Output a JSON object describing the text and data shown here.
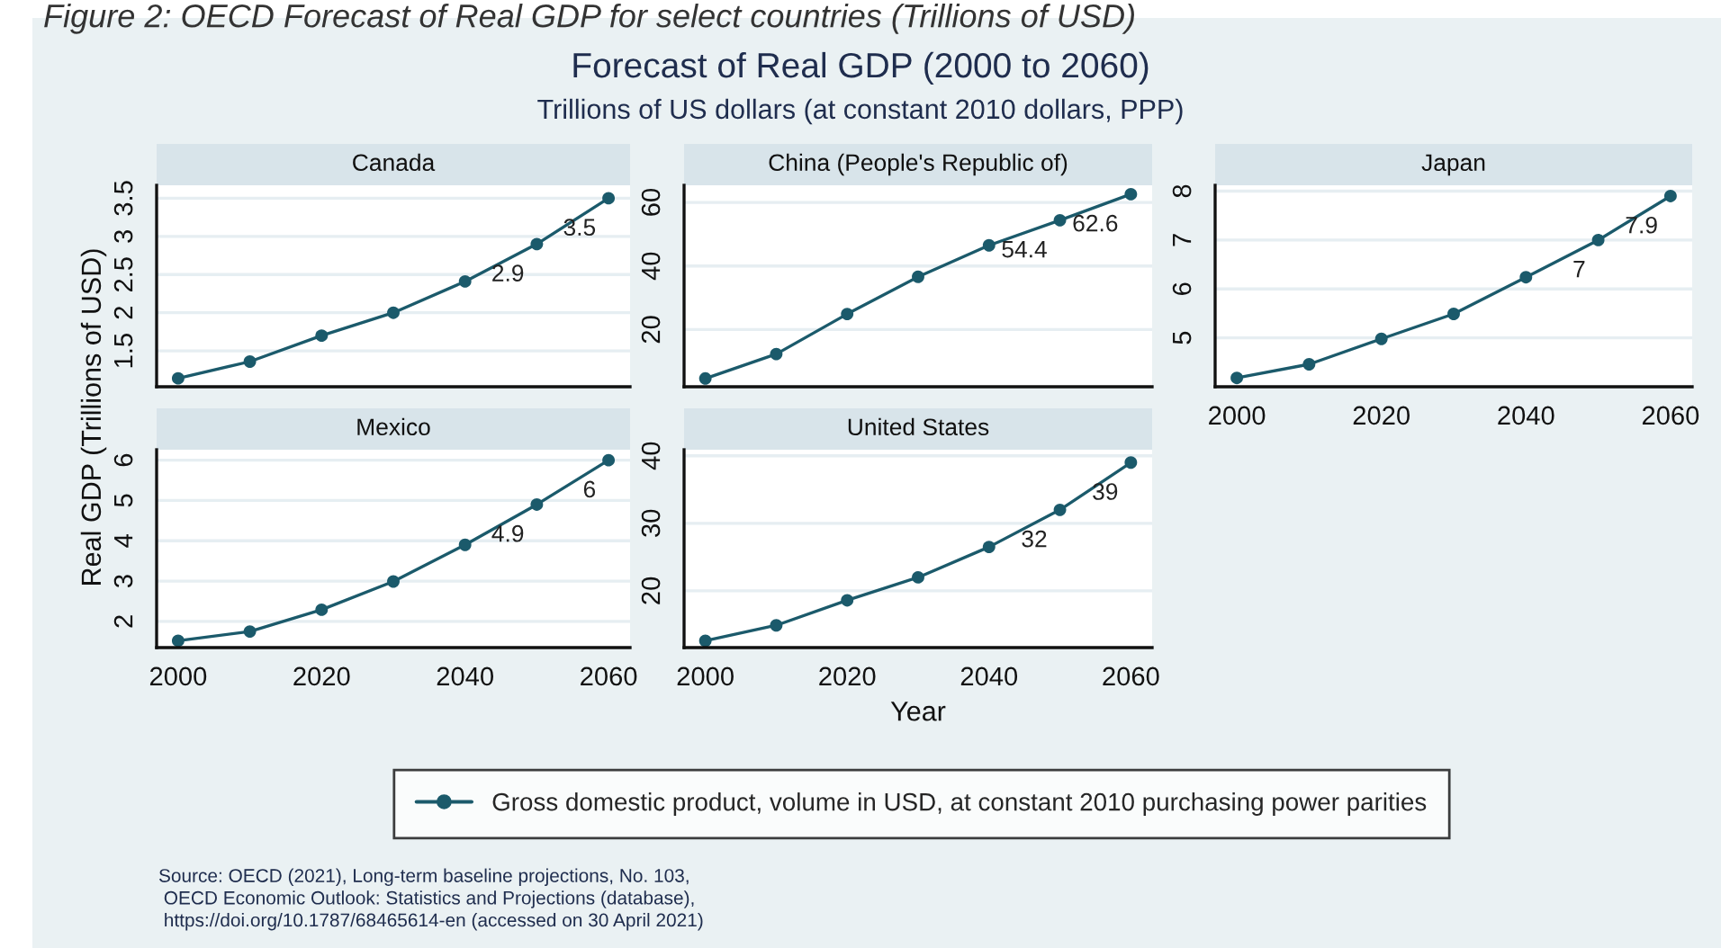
{
  "chart_data": [
    {
      "type": "line",
      "title": "Canada",
      "x": [
        2000,
        2010,
        2020,
        2030,
        2040,
        2050,
        2060
      ],
      "xlim": [
        1997,
        2063
      ],
      "xticks": [
        2000,
        2020,
        2040,
        2060
      ],
      "ylim": [
        1.03,
        3.67
      ],
      "yticks": [
        1.5,
        2,
        2.5,
        3,
        3.5
      ],
      "tick_labels": "y",
      "grid": "y",
      "marker": "circle",
      "line_style": "solid",
      "legend": "bottom",
      "series": [
        {
          "name": "Gross domestic product, volume in USD, at constant 2010 purchasing power parities",
          "color": "#1b5a6b",
          "values": [
            1.14,
            1.36,
            1.7,
            2.0,
            2.41,
            2.9,
            3.5
          ],
          "value_labels": [
            null,
            null,
            null,
            null,
            null,
            "2.9",
            "3.5"
          ]
        }
      ],
      "annotations": [
        "Figure 2: OECD Forecast of Real GDP for select countries (Trillions of USD)",
        "Forecast of Real GDP (2000 to 2060)",
        "Trillions of US dollars (at constant 2010 dollars, PPP)",
        "Source: OECD (2021), Long-term baseline projections, No. 103,\n OECD Economic Outlook: Statistics and Projections (database),\n https://doi.org/10.1787/68465614-en (accessed on 30 April 2021)"
      ]
    },
    {
      "type": "line",
      "title": "China (People's Republic of)",
      "x": [
        2000,
        2010,
        2020,
        2030,
        2040,
        2050,
        2060
      ],
      "xlim": [
        1997,
        2063
      ],
      "xticks": [
        2000,
        2020,
        2040,
        2060
      ],
      "ylim": [
        2.0,
        65.4
      ],
      "yticks": [
        20,
        40,
        60
      ],
      "tick_labels": "y",
      "grid": "y",
      "marker": "circle",
      "line_style": "solid",
      "series": [
        {
          "color": "#1b5a6b",
          "values": [
            4.6,
            12.3,
            24.9,
            36.6,
            46.5,
            54.4,
            62.6
          ],
          "value_labels": [
            null,
            null,
            null,
            null,
            null,
            "54.4",
            "62.6"
          ]
        }
      ]
    },
    {
      "type": "line",
      "title": "Japan",
      "x": [
        2000,
        2010,
        2020,
        2030,
        2040,
        2050,
        2060
      ],
      "xlim": [
        1997,
        2063
      ],
      "xticks": [
        2000,
        2020,
        2040,
        2060
      ],
      "ylim": [
        4.0,
        8.12
      ],
      "yticks": [
        5,
        6,
        7,
        8
      ],
      "grid": "y",
      "marker": "circle",
      "line_style": "solid",
      "series": [
        {
          "color": "#1b5a6b",
          "values": [
            4.18,
            4.46,
            4.98,
            5.49,
            6.24,
            7,
            7.9
          ],
          "value_labels": [
            null,
            null,
            null,
            null,
            null,
            "7",
            "7.9"
          ]
        }
      ]
    },
    {
      "type": "line",
      "title": "Mexico",
      "ylabel": "Real GDP (Trillions of USD)",
      "x": [
        2000,
        2010,
        2020,
        2030,
        2040,
        2050,
        2060
      ],
      "xlim": [
        1997,
        2063
      ],
      "xticks": [
        2000,
        2020,
        2040,
        2060
      ],
      "ylim": [
        1.35,
        6.26
      ],
      "yticks": [
        2,
        3,
        4,
        5,
        6
      ],
      "grid": "y",
      "marker": "circle",
      "line_style": "solid",
      "series": [
        {
          "color": "#1b5a6b",
          "values": [
            1.52,
            1.75,
            2.29,
            2.99,
            3.9,
            4.9,
            6
          ],
          "value_labels": [
            null,
            null,
            null,
            null,
            null,
            "4.9",
            "6"
          ]
        }
      ]
    },
    {
      "type": "line",
      "title": "United States",
      "xlabel": "Year",
      "x": [
        2000,
        2010,
        2020,
        2030,
        2040,
        2050,
        2060
      ],
      "xlim": [
        1997,
        2063
      ],
      "xticks": [
        2000,
        2020,
        2040,
        2060
      ],
      "ylim": [
        11.6,
        40.9
      ],
      "yticks": [
        20,
        30,
        40
      ],
      "grid": "y",
      "marker": "circle",
      "line_style": "solid",
      "series": [
        {
          "color": "#1b5a6b",
          "values": [
            12.6,
            14.9,
            18.6,
            22.0,
            26.5,
            32,
            39
          ],
          "value_labels": [
            null,
            null,
            null,
            null,
            null,
            "32",
            "39"
          ]
        }
      ]
    }
  ]
}
